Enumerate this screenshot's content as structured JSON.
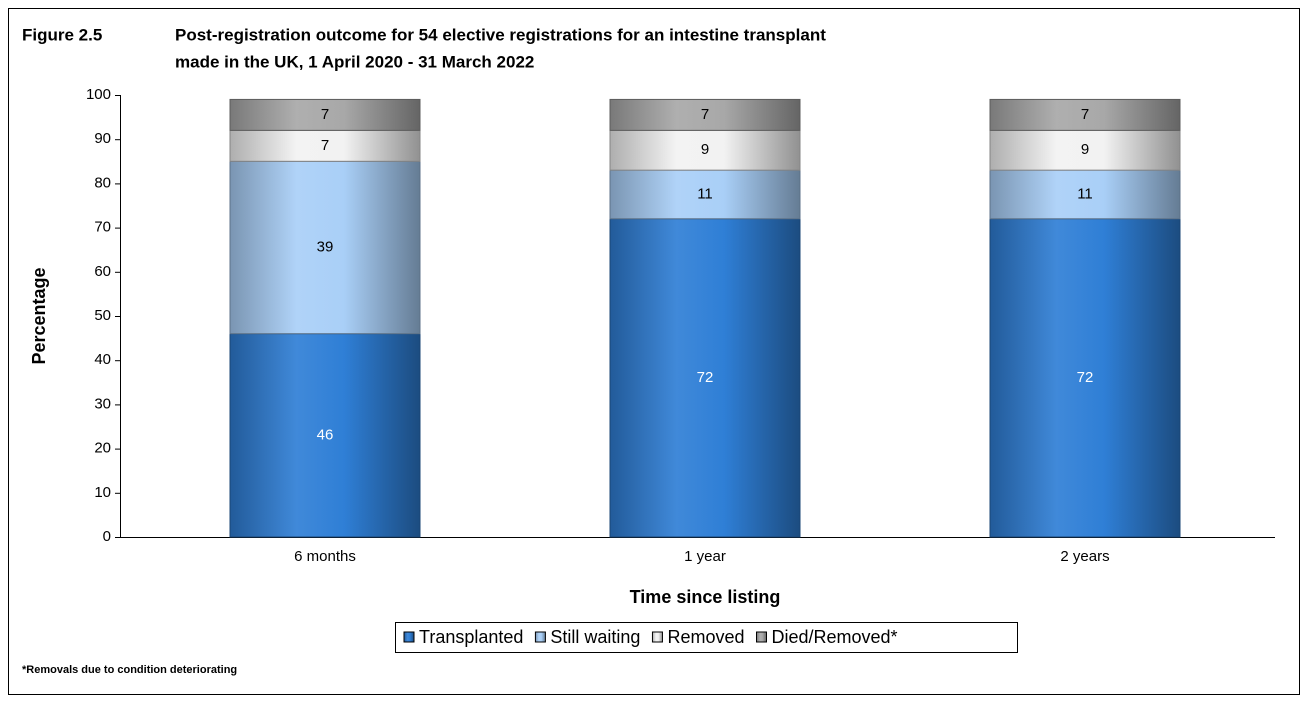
{
  "chart_data": {
    "type": "stacked_bar",
    "figure_label": "Figure 2.5",
    "title": [
      "Post-registration outcome for 54 elective registrations for an intestine transplant",
      "made in the UK, 1 April 2020 - 31 March 2022"
    ],
    "x_label": "Time since listing",
    "y_label": "Percentage",
    "footnote": "*Removals due to condition deteriorating",
    "categories": [
      "6 months",
      "1 year",
      "2 years"
    ],
    "series": [
      {
        "name": "Transplanted",
        "color": "#2f7fd6",
        "values": [
          46,
          72,
          72
        ]
      },
      {
        "name": "Still waiting",
        "color": "#a9cff7",
        "values": [
          39,
          11,
          11
        ]
      },
      {
        "name": "Removed",
        "color": "#f2f2f2",
        "values": [
          7,
          9,
          9
        ]
      },
      {
        "name": "Died/Removed*",
        "color": "#a8a8a8",
        "values": [
          7,
          7,
          7
        ]
      }
    ],
    "ylim": [
      0,
      100
    ],
    "yticks": [
      0,
      10,
      20,
      30,
      40,
      50,
      60,
      70,
      80,
      90,
      100
    ],
    "grid": false,
    "legend": "bottom"
  }
}
